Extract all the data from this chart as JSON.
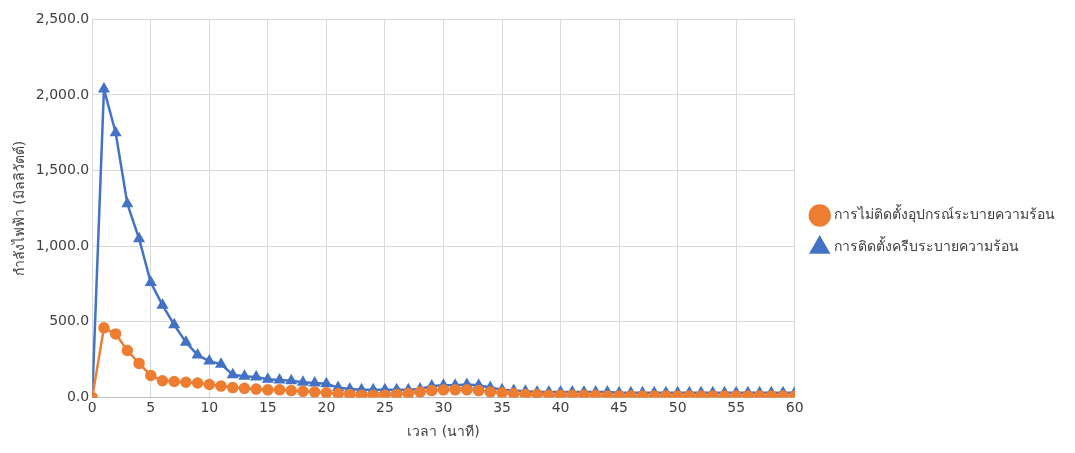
{
  "chart_data": {
    "type": "line",
    "xlabel": "เวลา (นาที)",
    "ylabel": "กำลังไฟฟ้า (มิลลิวัตต์)",
    "x": [
      0,
      1,
      2,
      3,
      4,
      5,
      6,
      7,
      8,
      9,
      10,
      11,
      12,
      13,
      14,
      15,
      16,
      17,
      18,
      19,
      20,
      21,
      22,
      23,
      24,
      25,
      26,
      27,
      28,
      29,
      30,
      31,
      32,
      33,
      34,
      35,
      36,
      37,
      38,
      39,
      40,
      41,
      42,
      43,
      44,
      45,
      46,
      47,
      48,
      49,
      50,
      51,
      52,
      53,
      54,
      55,
      56,
      57,
      58,
      59,
      60
    ],
    "xlim": [
      0,
      60
    ],
    "xticks": [
      0,
      5,
      10,
      15,
      20,
      25,
      30,
      35,
      40,
      45,
      50,
      55,
      60
    ],
    "ylim": [
      0,
      2500
    ],
    "yticks": [
      {
        "value": 0,
        "label": "0.0"
      },
      {
        "value": 500,
        "label": "500.0"
      },
      {
        "value": 1000,
        "label": "1,000.0"
      },
      {
        "value": 1500,
        "label": "1,500.0"
      },
      {
        "value": 2000,
        "label": "2,000.0"
      },
      {
        "value": 2500,
        "label": "2,500.0"
      }
    ],
    "grid": true,
    "legend": "right",
    "series": [
      {
        "name": "การไม่ติดตั้งอุปกรณ์ระบายความร้อน",
        "color": "#ed7d31",
        "marker": "circle",
        "values": [
          0,
          460,
          420,
          310,
          225,
          145,
          110,
          105,
          100,
          95,
          85,
          75,
          65,
          60,
          55,
          50,
          50,
          45,
          40,
          35,
          30,
          25,
          20,
          15,
          15,
          15,
          20,
          25,
          35,
          45,
          50,
          50,
          50,
          45,
          35,
          30,
          25,
          20,
          20,
          15,
          15,
          15,
          15,
          15,
          10,
          10,
          10,
          10,
          10,
          10,
          10,
          10,
          10,
          10,
          10,
          10,
          10,
          10,
          10,
          10,
          10
        ]
      },
      {
        "name": "การติดตั้งครีบระบายความร้อน",
        "color": "#4472c4",
        "marker": "triangle",
        "values": [
          0,
          2040,
          1750,
          1280,
          1050,
          760,
          610,
          480,
          365,
          280,
          240,
          220,
          150,
          140,
          135,
          120,
          115,
          110,
          100,
          95,
          90,
          65,
          55,
          50,
          50,
          50,
          50,
          50,
          55,
          75,
          80,
          80,
          85,
          80,
          65,
          50,
          45,
          40,
          35,
          35,
          35,
          35,
          35,
          35,
          35,
          30,
          30,
          30,
          30,
          30,
          30,
          30,
          30,
          30,
          30,
          30,
          30,
          30,
          30,
          30,
          30
        ]
      }
    ]
  }
}
